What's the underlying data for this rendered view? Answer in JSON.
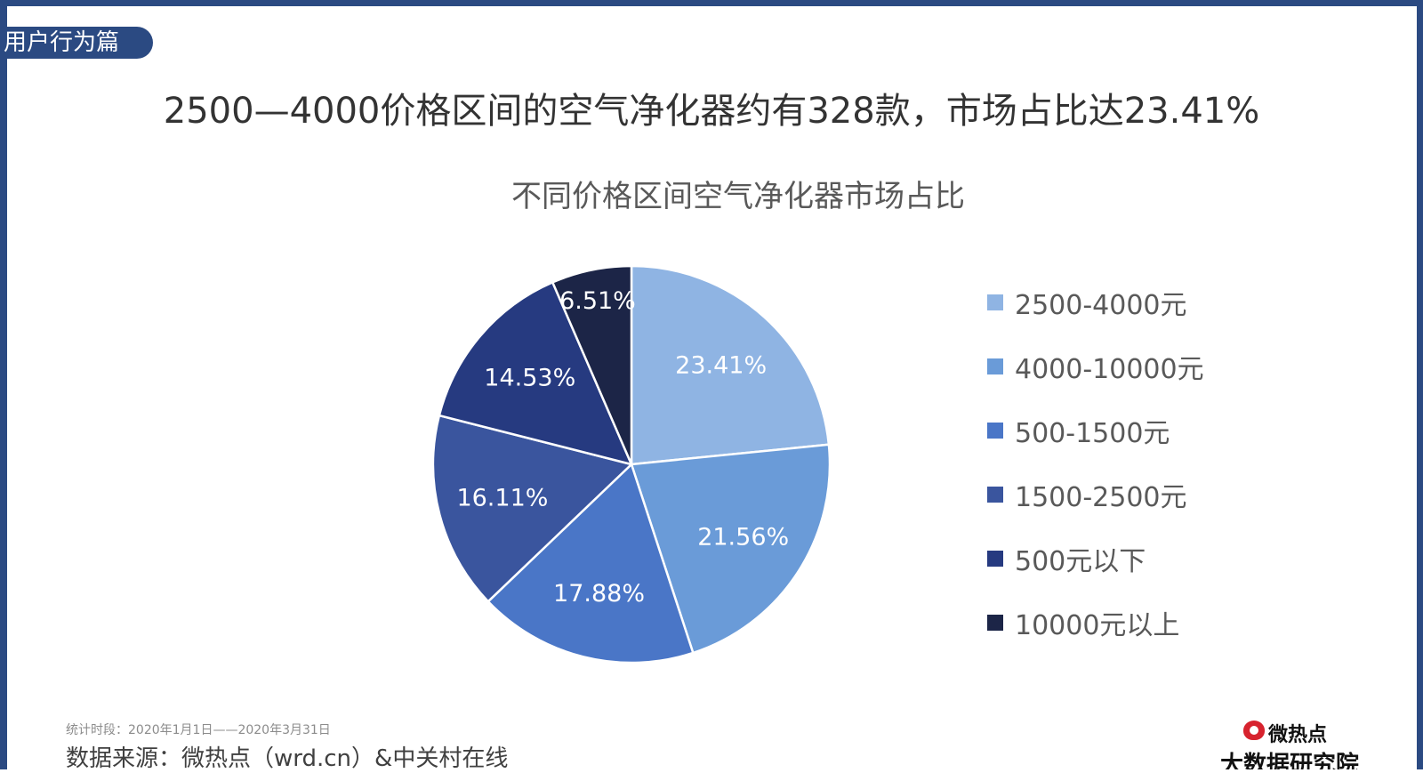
{
  "section_tag": "用户行为篇",
  "headline": "2500—4000价格区间的空气净化器约有328款，市场占比达23.41%",
  "footer": {
    "period": "统计时段：2020年1月1日——2020年3月31日",
    "source": "数据来源：微热点（wrd.cn）&中关村在线"
  },
  "logo": {
    "name": "微热点",
    "sub": "大数据研究院"
  },
  "chart_data": {
    "type": "pie",
    "title": "不同价格区间空气净化器市场占比",
    "unit": "%",
    "legend_position": "right",
    "slices": [
      {
        "label": "2500-4000元",
        "value": 23.41,
        "display": "23.41%",
        "color": "#8fb4e3"
      },
      {
        "label": "4000-10000元",
        "value": 21.56,
        "display": "21.56%",
        "color": "#6a9bd8"
      },
      {
        "label": "500-1500元",
        "value": 17.88,
        "display": "17.88%",
        "color": "#4a76c7"
      },
      {
        "label": "1500-2500元",
        "value": 16.11,
        "display": "16.11%",
        "color": "#3a559e"
      },
      {
        "label": "500元以下",
        "value": 14.53,
        "display": "14.53%",
        "color": "#263a80"
      },
      {
        "label": "10000元以上",
        "value": 6.51,
        "display": "6.51%",
        "color": "#1c2547"
      }
    ]
  }
}
